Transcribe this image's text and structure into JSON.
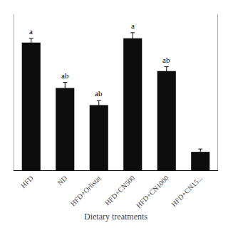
{
  "chart_data": {
    "type": "bar",
    "categories": [
      "HFD",
      "ND",
      "HFD+Orlistat",
      "HFD+CN500",
      "HFD+CN1000",
      "HFD+CN15..."
    ],
    "values": [
      0.9,
      0.58,
      0.46,
      0.93,
      0.7,
      0.13
    ],
    "errors": [
      0.03,
      0.04,
      0.03,
      0.04,
      0.03,
      0.02
    ],
    "color": "#0d0d0d",
    "xlabel": "Dietary treatments",
    "ylim": [
      0,
      1.1
    ],
    "tick_labels": "x",
    "grid": false,
    "annotations": [
      {
        "category": "HFD",
        "text": "a"
      },
      {
        "category": "ND",
        "text": "ab"
      },
      {
        "category": "HFD+Orlistat",
        "text": "ab"
      },
      {
        "category": "HFD+CN500",
        "text": "a"
      },
      {
        "category": "HFD+CN1000",
        "text": "ab"
      }
    ]
  }
}
